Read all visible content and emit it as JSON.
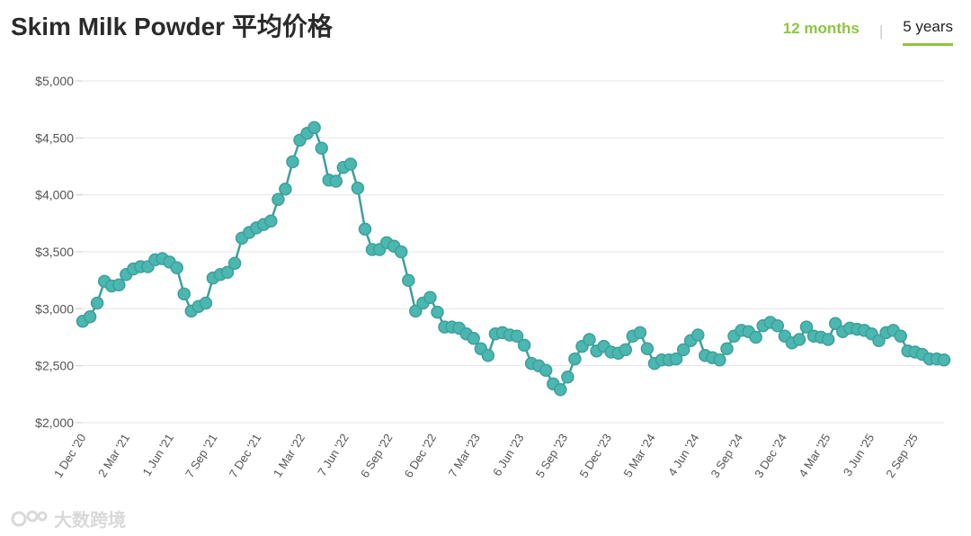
{
  "header": {
    "title": "Skim Milk Powder 平均价格",
    "tab_12m": "12 months",
    "tab_sep": "|",
    "tab_5y": "5 years"
  },
  "watermark": {
    "text": "大数跨境"
  },
  "colors": {
    "line": "#3f9f9a",
    "marker": "#4ab7b0",
    "accent": "#8cc63f",
    "grid": "#e6e6e6"
  },
  "chart_data": {
    "type": "line",
    "title": "Skim Milk Powder 平均价格",
    "xlabel": "",
    "ylabel": "",
    "ylim": [
      2000,
      5000
    ],
    "yticks": [
      2000,
      2500,
      3000,
      3500,
      4000,
      4500,
      5000
    ],
    "ytick_labels": [
      "$2,000",
      "$2,500",
      "$3,000",
      "$3,500",
      "$4,000",
      "$4,500",
      "$5,000"
    ],
    "grid": true,
    "xtick_labels": [
      "1 Dec '20",
      "2 Mar '21",
      "1 Jun '21",
      "7 Sep '21",
      "7 Dec '21",
      "1 Mar '22",
      "7 Jun '22",
      "6 Sep '22",
      "6 Dec '22",
      "7 Mar '23",
      "6 Jun '23",
      "5 Sep '23",
      "5 Dec '23",
      "5 Mar '24",
      "4 Jun '24",
      "3 Sep '24",
      "3 Dec '24",
      "4 Mar '25",
      "3 Jun '25",
      "2 Sep '25"
    ],
    "series": [
      {
        "values": [
          2890,
          2930,
          3050,
          3240,
          3200,
          3210,
          3300,
          3350,
          3370,
          3370,
          3430,
          3440,
          3410,
          3360,
          3130,
          2980,
          3020,
          3050,
          3270,
          3300,
          3320,
          3400,
          3620,
          3670,
          3710,
          3740,
          3770,
          3960,
          4050,
          4290,
          4480,
          4540,
          4590,
          4410,
          4130,
          4120,
          4240,
          4270,
          4060,
          3700,
          3520,
          3520,
          3580,
          3550,
          3500,
          3250,
          2980,
          3050,
          3100,
          2970,
          2840,
          2840,
          2830,
          2780,
          2740,
          2650,
          2590,
          2780,
          2790,
          2770,
          2760,
          2680,
          2520,
          2500,
          2460,
          2340,
          2290,
          2400,
          2560,
          2670,
          2730,
          2630,
          2670,
          2620,
          2610,
          2640,
          2760,
          2790,
          2650,
          2520,
          2550,
          2550,
          2560,
          2640,
          2720,
          2770,
          2590,
          2570,
          2550,
          2650,
          2760,
          2810,
          2800,
          2750,
          2850,
          2880,
          2850,
          2760,
          2700,
          2730,
          2840,
          2760,
          2750,
          2730,
          2870,
          2800,
          2830,
          2820,
          2810,
          2780,
          2720,
          2790,
          2810,
          2760,
          2630,
          2620,
          2600,
          2560,
          2560,
          2550
        ]
      }
    ]
  }
}
